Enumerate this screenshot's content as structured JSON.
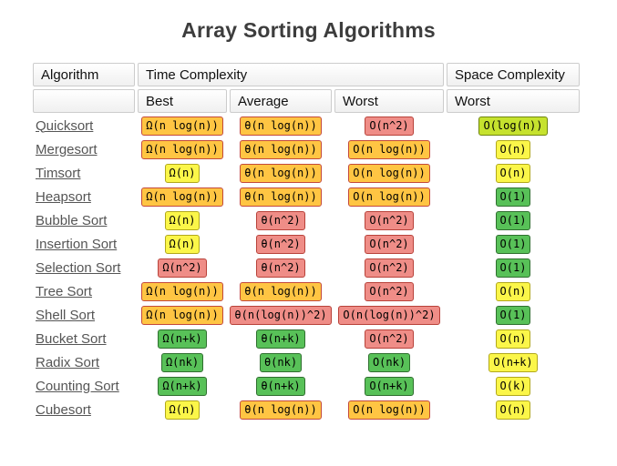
{
  "page": {
    "title": "Array Sorting Algorithms"
  },
  "table": {
    "header": {
      "algorithm": "Algorithm",
      "time_complexity": "Time Complexity",
      "space_complexity": "Space Complexity",
      "best": "Best",
      "average": "Average",
      "worst": "Worst",
      "space_worst": "Worst"
    },
    "tones": {
      "red": {
        "bg": "#ef8d87",
        "border": "#b8423a"
      },
      "orange": {
        "bg": "#ffc543",
        "border": "#c3493b"
      },
      "yellow": {
        "bg": "#fbf649",
        "border": "#b1a81c"
      },
      "yellowgreen": {
        "bg": "#c6e22e",
        "border": "#6f850e"
      },
      "green": {
        "bg": "#58c158",
        "border": "#2f6f2f"
      }
    },
    "rows": [
      {
        "name": "Quicksort",
        "cells": [
          {
            "text": "Ω(n log(n))",
            "tone": "orange"
          },
          {
            "text": "θ(n log(n))",
            "tone": "orange"
          },
          {
            "text": "O(n^2)",
            "tone": "red"
          },
          {
            "text": "O(log(n))",
            "tone": "yellowgreen"
          }
        ]
      },
      {
        "name": "Mergesort",
        "cells": [
          {
            "text": "Ω(n log(n))",
            "tone": "orange"
          },
          {
            "text": "θ(n log(n))",
            "tone": "orange"
          },
          {
            "text": "O(n log(n))",
            "tone": "orange"
          },
          {
            "text": "O(n)",
            "tone": "yellow"
          }
        ]
      },
      {
        "name": "Timsort",
        "cells": [
          {
            "text": "Ω(n)",
            "tone": "yellow"
          },
          {
            "text": "θ(n log(n))",
            "tone": "orange"
          },
          {
            "text": "O(n log(n))",
            "tone": "orange"
          },
          {
            "text": "O(n)",
            "tone": "yellow"
          }
        ]
      },
      {
        "name": "Heapsort",
        "cells": [
          {
            "text": "Ω(n log(n))",
            "tone": "orange"
          },
          {
            "text": "θ(n log(n))",
            "tone": "orange"
          },
          {
            "text": "O(n log(n))",
            "tone": "orange"
          },
          {
            "text": "O(1)",
            "tone": "green"
          }
        ]
      },
      {
        "name": "Bubble Sort",
        "cells": [
          {
            "text": "Ω(n)",
            "tone": "yellow"
          },
          {
            "text": "θ(n^2)",
            "tone": "red"
          },
          {
            "text": "O(n^2)",
            "tone": "red"
          },
          {
            "text": "O(1)",
            "tone": "green"
          }
        ]
      },
      {
        "name": "Insertion Sort",
        "cells": [
          {
            "text": "Ω(n)",
            "tone": "yellow"
          },
          {
            "text": "θ(n^2)",
            "tone": "red"
          },
          {
            "text": "O(n^2)",
            "tone": "red"
          },
          {
            "text": "O(1)",
            "tone": "green"
          }
        ]
      },
      {
        "name": "Selection Sort",
        "cells": [
          {
            "text": "Ω(n^2)",
            "tone": "red"
          },
          {
            "text": "θ(n^2)",
            "tone": "red"
          },
          {
            "text": "O(n^2)",
            "tone": "red"
          },
          {
            "text": "O(1)",
            "tone": "green"
          }
        ]
      },
      {
        "name": "Tree Sort",
        "cells": [
          {
            "text": "Ω(n log(n))",
            "tone": "orange"
          },
          {
            "text": "θ(n log(n))",
            "tone": "orange"
          },
          {
            "text": "O(n^2)",
            "tone": "red"
          },
          {
            "text": "O(n)",
            "tone": "yellow"
          }
        ]
      },
      {
        "name": "Shell Sort",
        "cells": [
          {
            "text": "Ω(n log(n))",
            "tone": "orange"
          },
          {
            "text": "θ(n(log(n))^2)",
            "tone": "red"
          },
          {
            "text": "O(n(log(n))^2)",
            "tone": "red"
          },
          {
            "text": "O(1)",
            "tone": "green"
          }
        ]
      },
      {
        "name": "Bucket Sort",
        "cells": [
          {
            "text": "Ω(n+k)",
            "tone": "green"
          },
          {
            "text": "θ(n+k)",
            "tone": "green"
          },
          {
            "text": "O(n^2)",
            "tone": "red"
          },
          {
            "text": "O(n)",
            "tone": "yellow"
          }
        ]
      },
      {
        "name": "Radix Sort",
        "cells": [
          {
            "text": "Ω(nk)",
            "tone": "green"
          },
          {
            "text": "θ(nk)",
            "tone": "green"
          },
          {
            "text": "O(nk)",
            "tone": "green"
          },
          {
            "text": "O(n+k)",
            "tone": "yellow"
          }
        ]
      },
      {
        "name": "Counting Sort",
        "cells": [
          {
            "text": "Ω(n+k)",
            "tone": "green"
          },
          {
            "text": "θ(n+k)",
            "tone": "green"
          },
          {
            "text": "O(n+k)",
            "tone": "green"
          },
          {
            "text": "O(k)",
            "tone": "yellow"
          }
        ]
      },
      {
        "name": "Cubesort",
        "cells": [
          {
            "text": "Ω(n)",
            "tone": "yellow"
          },
          {
            "text": "θ(n log(n))",
            "tone": "orange"
          },
          {
            "text": "O(n log(n))",
            "tone": "orange"
          },
          {
            "text": "O(n)",
            "tone": "yellow"
          }
        ]
      }
    ]
  }
}
